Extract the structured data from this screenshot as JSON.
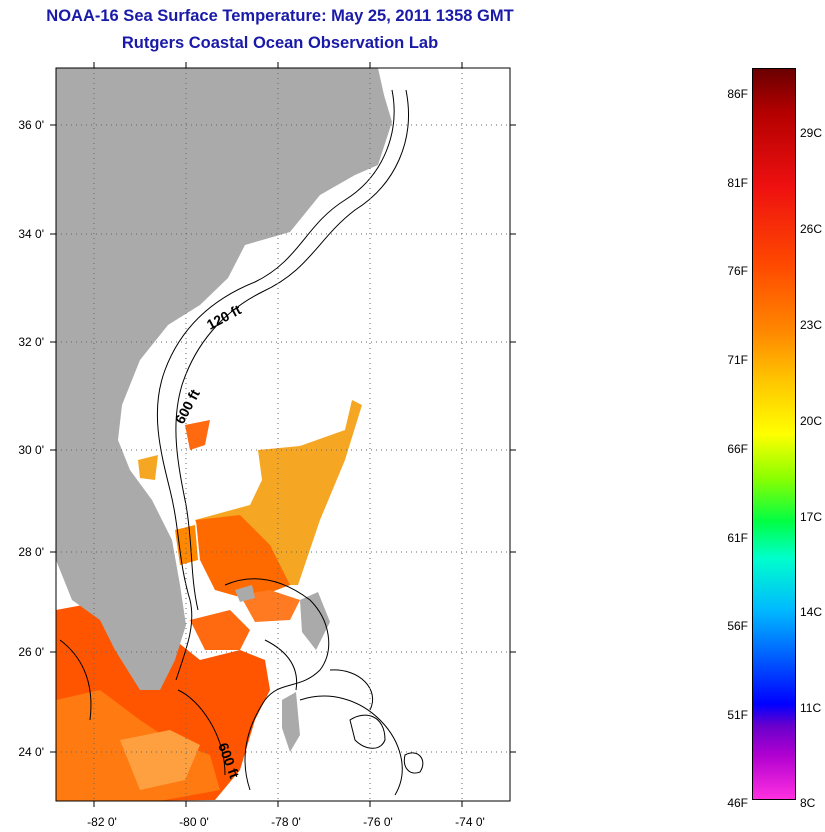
{
  "title": "NOAA-16 Sea Surface Temperature:  May 25, 2011 1358 GMT",
  "subtitle": "Rutgers Coastal Ocean Observation Lab",
  "map": {
    "lat_labels": [
      "36 0'",
      "34 0'",
      "32 0'",
      "30 0'",
      "28 0'",
      "26 0'",
      "24 0'"
    ],
    "lon_labels": [
      "-82 0'",
      "-80 0'",
      "-78 0'",
      "-76 0'",
      "-74 0'"
    ],
    "contour_labels": [
      "120 ft",
      "600 ft",
      "600 ft"
    ],
    "land_color": "#aaaaaa",
    "sst_color": "#ff8c1a"
  },
  "colorbar": {
    "fahrenheit": [
      "86F",
      "81F",
      "76F",
      "71F",
      "66F",
      "61F",
      "56F",
      "51F",
      "46F"
    ],
    "celsius": [
      "29C",
      "26C",
      "23C",
      "20C",
      "17C",
      "14C",
      "11C",
      "8C"
    ]
  }
}
